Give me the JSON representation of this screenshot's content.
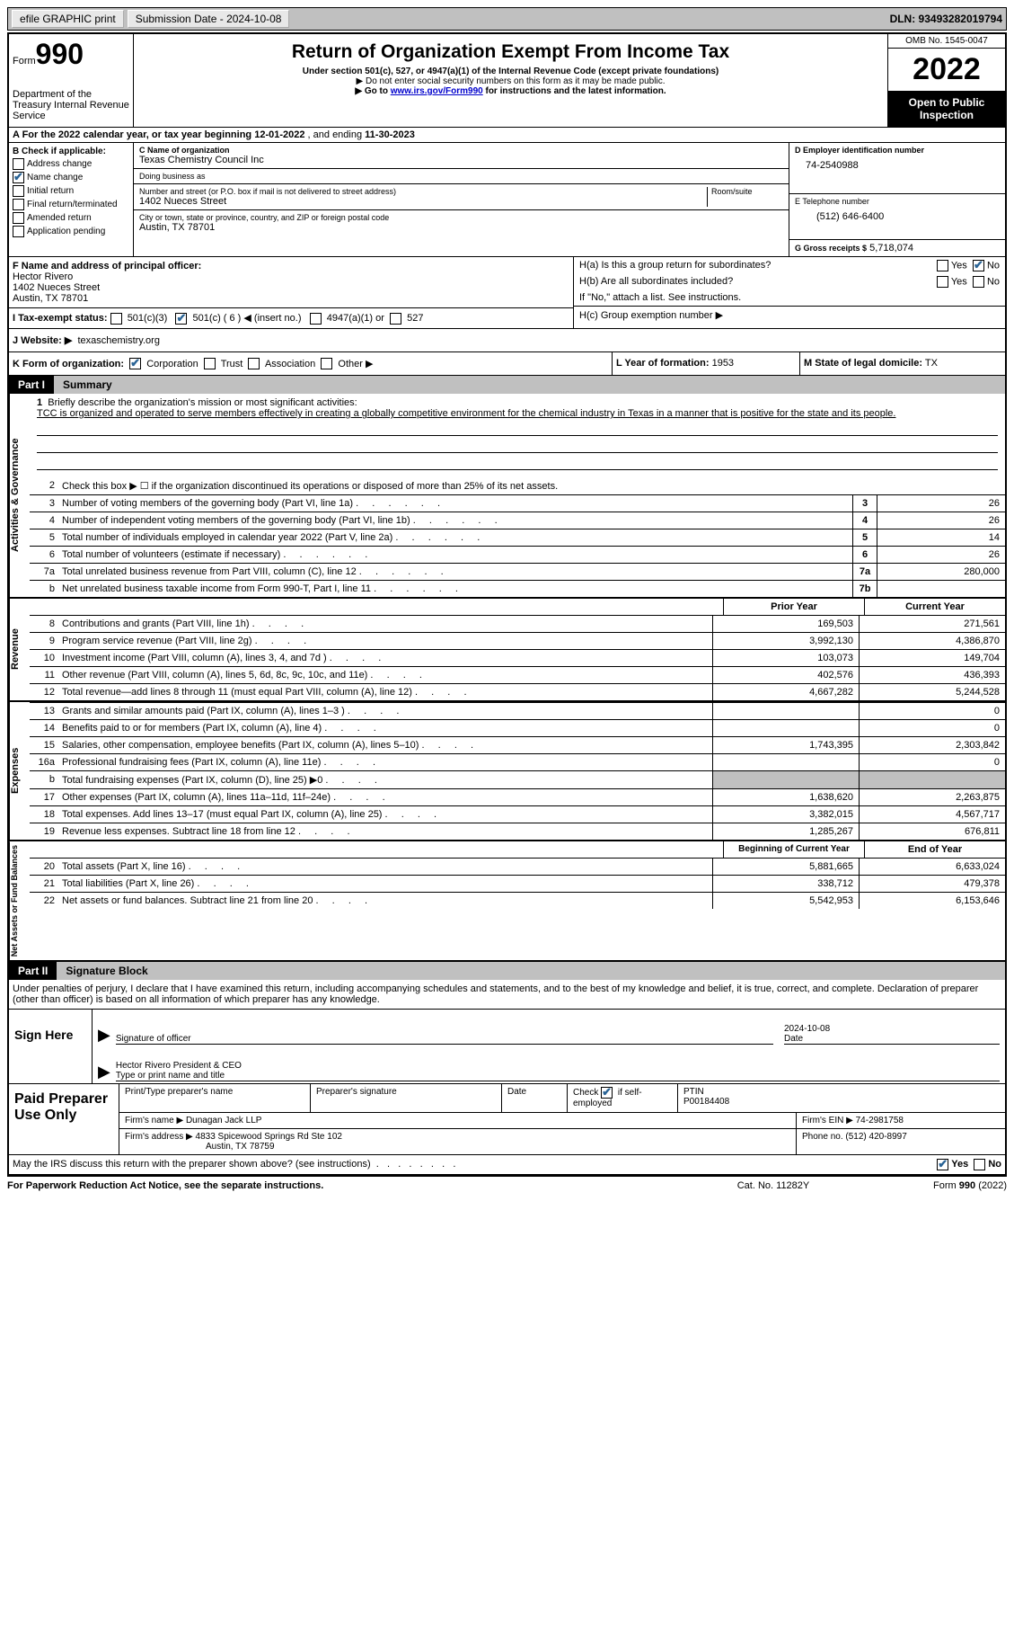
{
  "header": {
    "efile_label": "efile GRAPHIC print",
    "submission_label": "Submission Date - 2024-10-08",
    "dln_label": "DLN: 93493282019794"
  },
  "title_block": {
    "form_label": "Form",
    "form_number": "990",
    "dept": "Department of the Treasury\nInternal Revenue Service",
    "title": "Return of Organization Exempt From Income Tax",
    "subtitle": "Under section 501(c), 527, or 4947(a)(1) of the Internal Revenue Code (except private foundations)",
    "note1": "▶ Do not enter social security numbers on this form as it may be made public.",
    "note2_pre": "▶ Go to ",
    "note2_link": "www.irs.gov/Form990",
    "note2_post": " for instructions and the latest information.",
    "omb": "OMB No. 1545-0047",
    "year": "2022",
    "inspection": "Open to Public Inspection"
  },
  "row_a": {
    "text_pre": "A For the 2022 calendar year, or tax year beginning ",
    "begin": "12-01-2022",
    "mid": " , and ending ",
    "end": "11-30-2023"
  },
  "col_b": {
    "header": "B Check if applicable:",
    "items": [
      {
        "label": "Address change",
        "checked": false
      },
      {
        "label": "Name change",
        "checked": true
      },
      {
        "label": "Initial return",
        "checked": false
      },
      {
        "label": "Final return/terminated",
        "checked": false
      },
      {
        "label": "Amended return",
        "checked": false
      },
      {
        "label": "Application pending",
        "checked": false
      }
    ]
  },
  "col_c": {
    "name_label": "C Name of organization",
    "name": "Texas Chemistry Council Inc",
    "dba_label": "Doing business as",
    "dba": "",
    "addr_label": "Number and street (or P.O. box if mail is not delivered to street address)",
    "room_label": "Room/suite",
    "addr": "1402 Nueces Street",
    "city_label": "City or town, state or province, country, and ZIP or foreign postal code",
    "city": "Austin, TX  78701"
  },
  "col_d": {
    "ein_label": "D Employer identification number",
    "ein": "74-2540988",
    "phone_label": "E Telephone number",
    "phone": "(512) 646-6400",
    "gross_label": "G Gross receipts $",
    "gross": "5,718,074"
  },
  "officer": {
    "label": "F  Name and address of principal officer:",
    "name": "Hector Rivero",
    "addr1": "1402 Nueces Street",
    "addr2": "Austin, TX  78701",
    "ha_label": "H(a)  Is this a group return for subordinates?",
    "hb_label": "H(b)  Are all subordinates included?",
    "hb_note": "If \"No,\" attach a list. See instructions.",
    "hc_label": "H(c)  Group exemption number ▶",
    "yes": "Yes",
    "no": "No"
  },
  "status": {
    "label": "I  Tax-exempt status:",
    "opt1": "501(c)(3)",
    "opt2": "501(c) ( 6 ) ◀ (insert no.)",
    "opt3": "4947(a)(1) or",
    "opt4": "527"
  },
  "website": {
    "label": "J  Website: ▶",
    "value": "texaschemistry.org"
  },
  "klm": {
    "k_label": "K Form of organization:",
    "k_opts": [
      "Corporation",
      "Trust",
      "Association",
      "Other ▶"
    ],
    "l_label": "L Year of formation:",
    "l_val": "1953",
    "m_label": "M State of legal domicile:",
    "m_val": "TX"
  },
  "part1": {
    "tab": "Part I",
    "title": "Summary"
  },
  "mission": {
    "num": "1",
    "label": "Briefly describe the organization's mission or most significant activities:",
    "text": "TCC is organized and operated to serve members effectively in creating a globally competitive environment for the chemical industry in Texas in a manner that is positive for the state and its people."
  },
  "governance_lines": [
    {
      "num": "2",
      "desc": "Check this box ▶ ☐  if the organization discontinued its operations or disposed of more than 25% of its net assets."
    },
    {
      "num": "3",
      "desc": "Number of voting members of the governing body (Part VI, line 1a)",
      "box": "3",
      "val": "26"
    },
    {
      "num": "4",
      "desc": "Number of independent voting members of the governing body (Part VI, line 1b)",
      "box": "4",
      "val": "26"
    },
    {
      "num": "5",
      "desc": "Total number of individuals employed in calendar year 2022 (Part V, line 2a)",
      "box": "5",
      "val": "14"
    },
    {
      "num": "6",
      "desc": "Total number of volunteers (estimate if necessary)",
      "box": "6",
      "val": "26"
    },
    {
      "num": "7a",
      "desc": "Total unrelated business revenue from Part VIII, column (C), line 12",
      "box": "7a",
      "val": "280,000"
    },
    {
      "num": "b",
      "desc": "Net unrelated business taxable income from Form 990-T, Part I, line 11",
      "box": "7b",
      "val": ""
    }
  ],
  "rev_hdr": {
    "prior": "Prior Year",
    "current": "Current Year"
  },
  "revenue_lines": [
    {
      "num": "8",
      "desc": "Contributions and grants (Part VIII, line 1h)",
      "prior": "169,503",
      "current": "271,561"
    },
    {
      "num": "9",
      "desc": "Program service revenue (Part VIII, line 2g)",
      "prior": "3,992,130",
      "current": "4,386,870"
    },
    {
      "num": "10",
      "desc": "Investment income (Part VIII, column (A), lines 3, 4, and 7d )",
      "prior": "103,073",
      "current": "149,704"
    },
    {
      "num": "11",
      "desc": "Other revenue (Part VIII, column (A), lines 5, 6d, 8c, 9c, 10c, and 11e)",
      "prior": "402,576",
      "current": "436,393"
    },
    {
      "num": "12",
      "desc": "Total revenue—add lines 8 through 11 (must equal Part VIII, column (A), line 12)",
      "prior": "4,667,282",
      "current": "5,244,528"
    }
  ],
  "expense_lines": [
    {
      "num": "13",
      "desc": "Grants and similar amounts paid (Part IX, column (A), lines 1–3 )",
      "prior": "",
      "current": "0"
    },
    {
      "num": "14",
      "desc": "Benefits paid to or for members (Part IX, column (A), line 4)",
      "prior": "",
      "current": "0"
    },
    {
      "num": "15",
      "desc": "Salaries, other compensation, employee benefits (Part IX, column (A), lines 5–10)",
      "prior": "1,743,395",
      "current": "2,303,842"
    },
    {
      "num": "16a",
      "desc": "Professional fundraising fees (Part IX, column (A), line 11e)",
      "prior": "",
      "current": "0"
    },
    {
      "num": "b",
      "desc": "Total fundraising expenses (Part IX, column (D), line 25) ▶0",
      "prior": "SHADED",
      "current": "SHADED"
    },
    {
      "num": "17",
      "desc": "Other expenses (Part IX, column (A), lines 11a–11d, 11f–24e)",
      "prior": "1,638,620",
      "current": "2,263,875"
    },
    {
      "num": "18",
      "desc": "Total expenses. Add lines 13–17 (must equal Part IX, column (A), line 25)",
      "prior": "3,382,015",
      "current": "4,567,717"
    },
    {
      "num": "19",
      "desc": "Revenue less expenses. Subtract line 18 from line 12",
      "prior": "1,285,267",
      "current": "676,811"
    }
  ],
  "na_hdr": {
    "prior": "Beginning of Current Year",
    "current": "End of Year"
  },
  "netassets_lines": [
    {
      "num": "20",
      "desc": "Total assets (Part X, line 16)",
      "prior": "5,881,665",
      "current": "6,633,024"
    },
    {
      "num": "21",
      "desc": "Total liabilities (Part X, line 26)",
      "prior": "338,712",
      "current": "479,378"
    },
    {
      "num": "22",
      "desc": "Net assets or fund balances. Subtract line 21 from line 20",
      "prior": "5,542,953",
      "current": "6,153,646"
    }
  ],
  "part2": {
    "tab": "Part II",
    "title": "Signature Block"
  },
  "sig": {
    "declaration": "Under penalties of perjury, I declare that I have examined this return, including accompanying schedules and statements, and to the best of my knowledge and belief, it is true, correct, and complete. Declaration of preparer (other than officer) is based on all information of which preparer has any knowledge.",
    "sign_here": "Sign Here",
    "sig_officer": "Signature of officer",
    "date_val": "2024-10-08",
    "date_label": "Date",
    "name_val": "Hector Rivero President & CEO",
    "name_label": "Type or print name and title"
  },
  "preparer": {
    "label": "Paid Preparer Use Only",
    "print_label": "Print/Type preparer's name",
    "sig_label": "Preparer's signature",
    "date_label": "Date",
    "check_label": "Check ☑ if self-employed",
    "ptin_label": "PTIN",
    "ptin": "P00184408",
    "firm_name_label": "Firm's name  ▶",
    "firm_name": "Dunagan Jack LLP",
    "firm_ein_label": "Firm's EIN ▶",
    "firm_ein": "74-2981758",
    "firm_addr_label": "Firm's address ▶",
    "firm_addr1": "4833 Spicewood Springs Rd Ste 102",
    "firm_addr2": "Austin, TX  78759",
    "phone_label": "Phone no.",
    "phone": "(512) 420-8997"
  },
  "discuss": {
    "text": "May the IRS discuss this return with the preparer shown above? (see instructions)",
    "yes": "Yes",
    "no": "No"
  },
  "footer": {
    "left": "For Paperwork Reduction Act Notice, see the separate instructions.",
    "center": "Cat. No. 11282Y",
    "right": "Form 990 (2022)"
  },
  "vtabs": {
    "gov": "Activities & Governance",
    "rev": "Revenue",
    "exp": "Expenses",
    "na": "Net Assets or Fund Balances"
  }
}
